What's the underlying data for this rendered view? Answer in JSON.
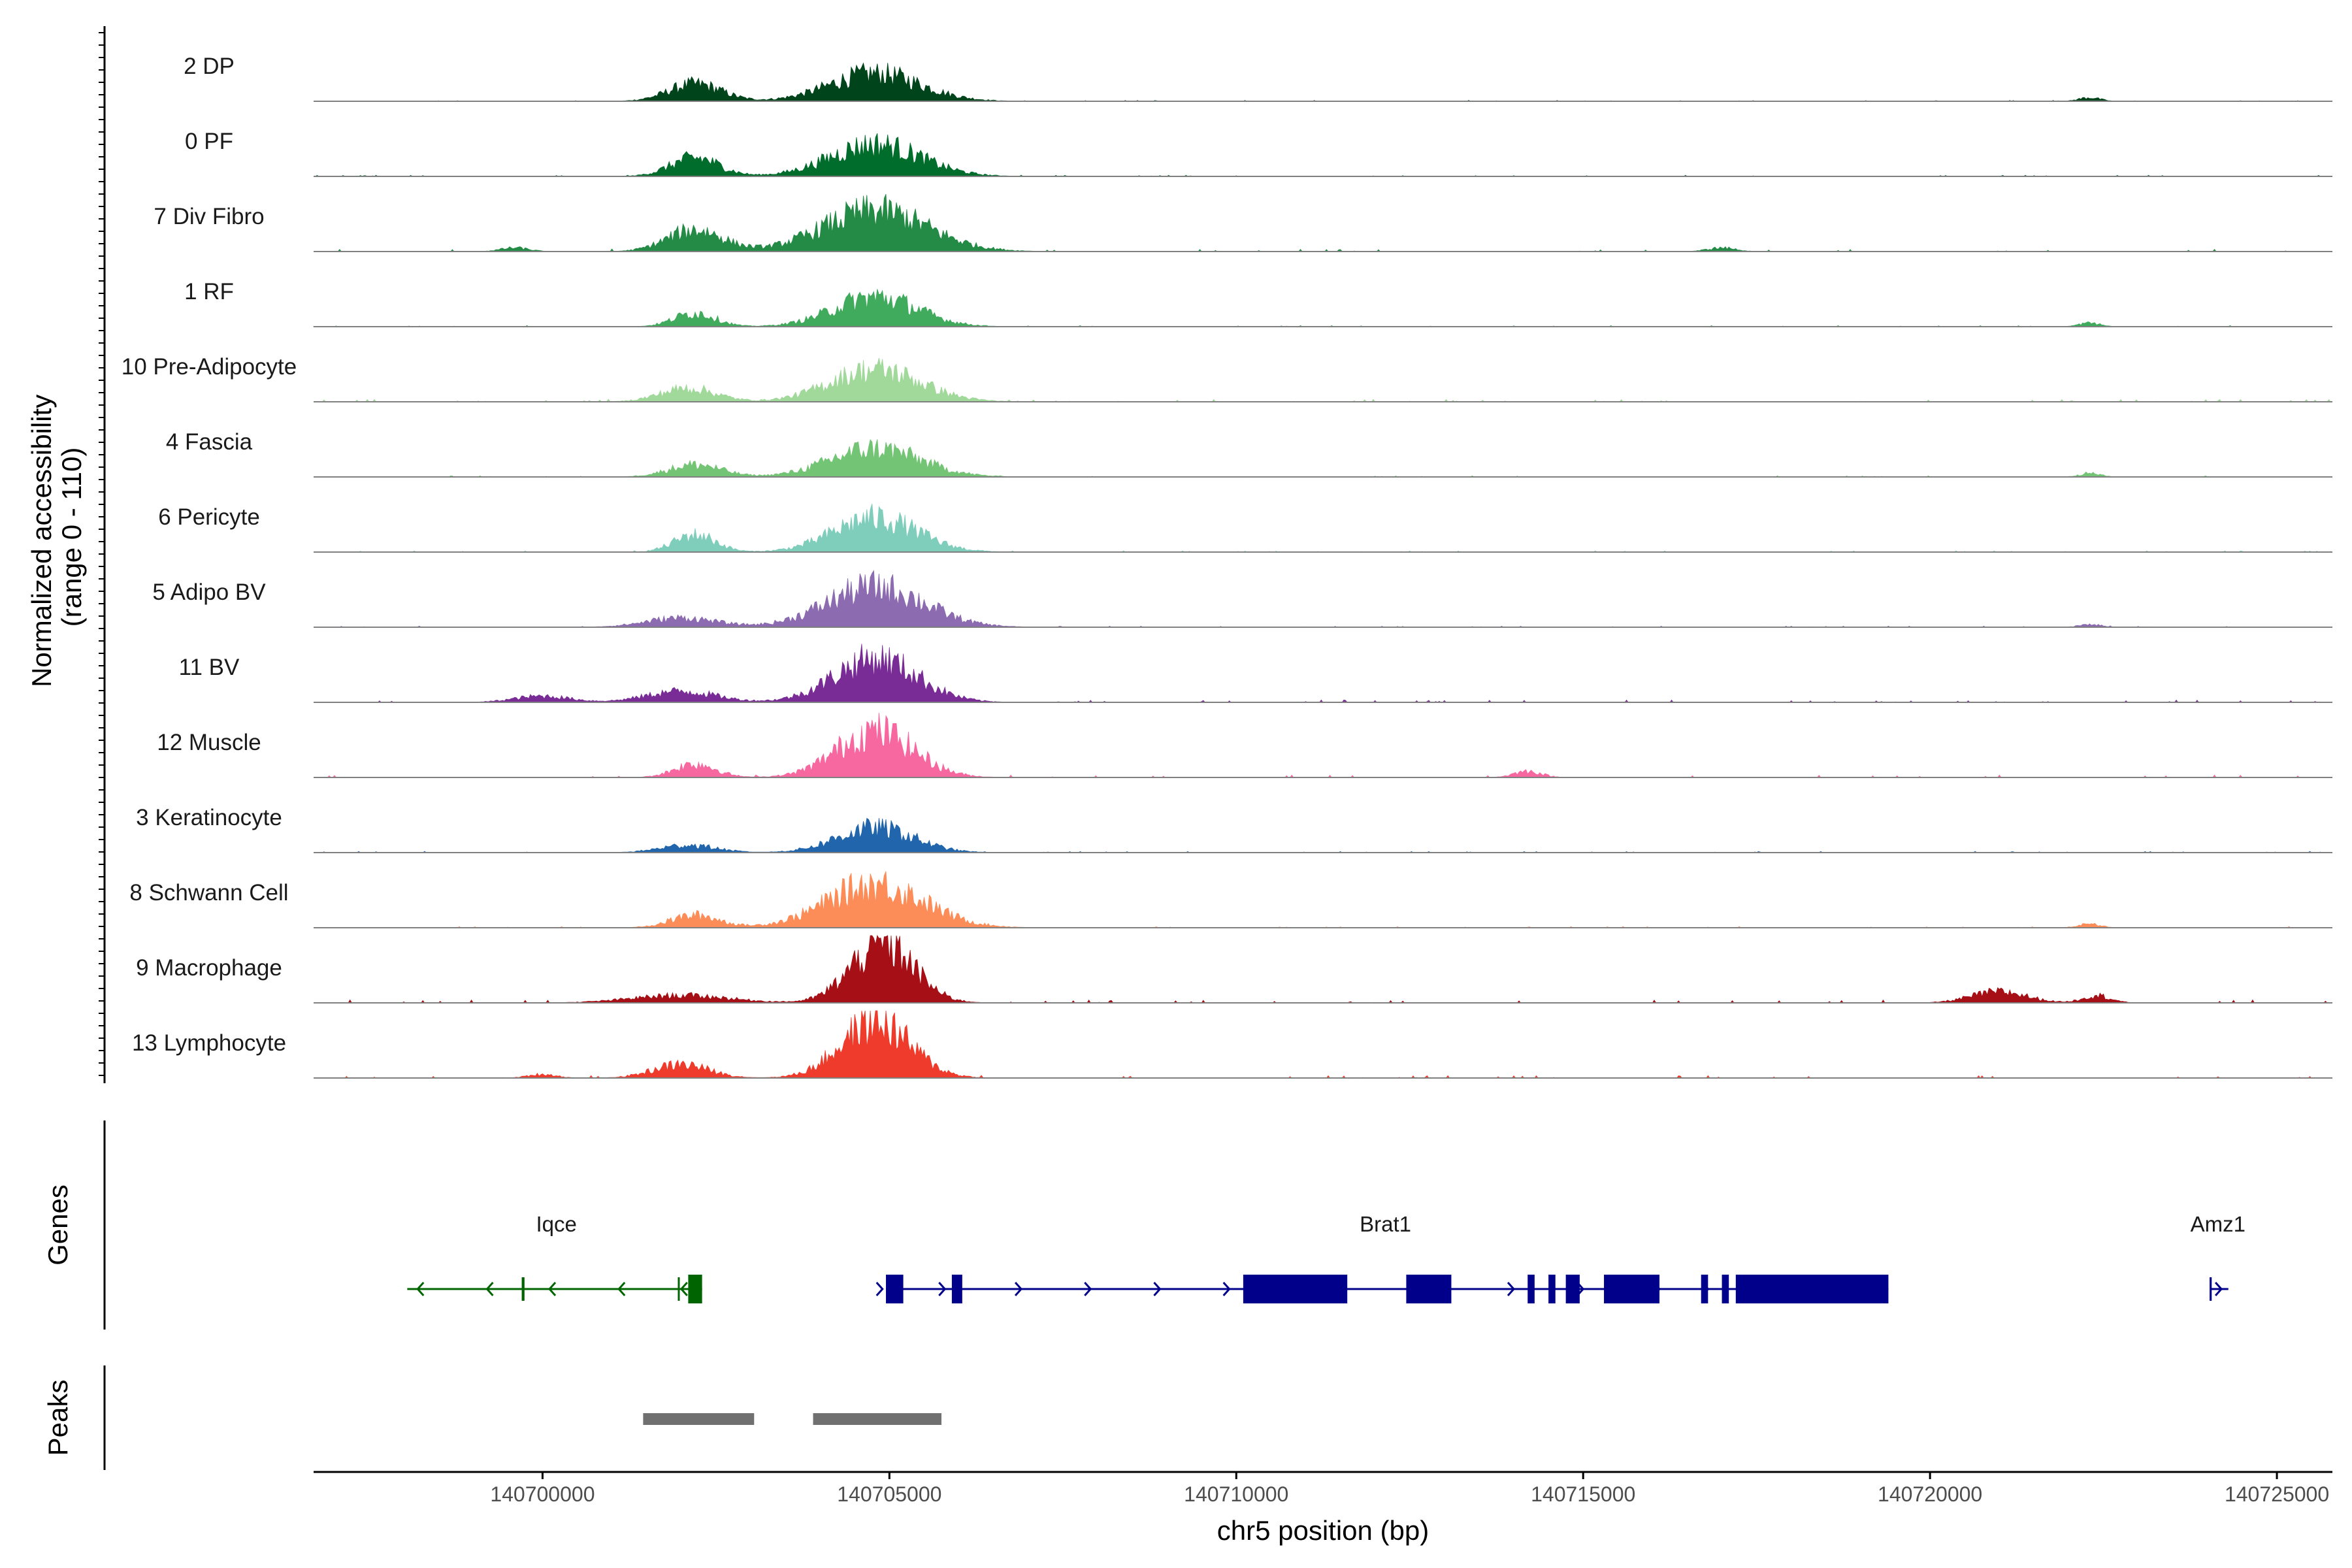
{
  "chart_data": {
    "type": "area",
    "title": "",
    "ylabel_line1": "Normalized accessibility",
    "ylabel_line2": "(range 0 - 110)",
    "ylim": [
      0,
      110
    ],
    "xlabel": "chr5 position (bp)",
    "xlim": [
      140696700,
      140725800
    ],
    "x_ticks": [
      140700000,
      140705000,
      140710000,
      140715000,
      140720000,
      140725000
    ],
    "x_tick_labels": [
      "140700000",
      "140705000",
      "140710000",
      "140715000",
      "140720000",
      "140725000"
    ],
    "panel_labels": {
      "genes": "Genes",
      "peaks": "Peaks"
    },
    "tracks": [
      {
        "name": "2 DP",
        "color": "#00441b",
        "peaks": [
          [
            140702200,
            28,
            380
          ],
          [
            140704800,
            45,
            650
          ],
          [
            140722300,
            6,
            150
          ]
        ],
        "noise": 1.5
      },
      {
        "name": "0 PF",
        "color": "#006d2c",
        "peaks": [
          [
            140702200,
            30,
            350
          ],
          [
            140704800,
            52,
            650
          ]
        ],
        "noise": 2
      },
      {
        "name": "7 Div Fibro",
        "color": "#238b45",
        "peaks": [
          [
            140702200,
            35,
            400
          ],
          [
            140704800,
            66,
            750
          ],
          [
            140699600,
            6,
            200
          ],
          [
            140717000,
            6,
            200
          ]
        ],
        "noise": 4
      },
      {
        "name": "1 RF",
        "color": "#41ab5d",
        "peaks": [
          [
            140702200,
            22,
            300
          ],
          [
            140704800,
            48,
            600
          ],
          [
            140722300,
            6,
            150
          ]
        ],
        "noise": 2
      },
      {
        "name": "10 Pre-Adipocyte",
        "color": "#a1d99b",
        "peaks": [
          [
            140702100,
            22,
            400
          ],
          [
            140704800,
            52,
            650
          ]
        ],
        "noise": 4
      },
      {
        "name": "4 Fascia",
        "color": "#74c476",
        "peaks": [
          [
            140702200,
            20,
            380
          ],
          [
            140704800,
            46,
            650
          ],
          [
            140722300,
            6,
            150
          ]
        ],
        "noise": 2
      },
      {
        "name": "6 Pericyte",
        "color": "#7fcdbb",
        "peaks": [
          [
            140702200,
            28,
            300
          ],
          [
            140704800,
            55,
            600
          ]
        ],
        "noise": 2
      },
      {
        "name": "5 Adipo BV",
        "color": "#8c6bb1",
        "peaks": [
          [
            140702000,
            15,
            500
          ],
          [
            140704800,
            65,
            700
          ],
          [
            140722300,
            5,
            150
          ]
        ],
        "noise": 2
      },
      {
        "name": "11 BV",
        "color": "#7a2c96",
        "peaks": [
          [
            140702000,
            18,
            500
          ],
          [
            140704800,
            70,
            600
          ],
          [
            140700000,
            10,
            400
          ]
        ],
        "noise": 4
      },
      {
        "name": "12 Muscle",
        "color": "#f768a1",
        "peaks": [
          [
            140702200,
            22,
            300
          ],
          [
            140704800,
            75,
            550
          ],
          [
            140714200,
            10,
            200
          ]
        ],
        "noise": 4
      },
      {
        "name": "3 Keratinocyte",
        "color": "#2166ac",
        "peaks": [
          [
            140702100,
            12,
            400
          ],
          [
            140704800,
            40,
            550
          ]
        ],
        "noise": 2
      },
      {
        "name": "8 Schwann Cell",
        "color": "#fc8d59",
        "peaks": [
          [
            140702200,
            20,
            350
          ],
          [
            140704800,
            70,
            700
          ],
          [
            140722300,
            6,
            150
          ]
        ],
        "noise": 2
      },
      {
        "name": "9 Macrophage",
        "color": "#a50f15",
        "peaks": [
          [
            140702000,
            12,
            700
          ],
          [
            140704900,
            95,
            450
          ],
          [
            140721000,
            18,
            400
          ],
          [
            140722400,
            12,
            200
          ]
        ],
        "noise": 5
      },
      {
        "name": "13 Lymphocyte",
        "color": "#ef3b2c",
        "peaks": [
          [
            140702000,
            22,
            400
          ],
          [
            140704800,
            90,
            500
          ],
          [
            140700000,
            6,
            200
          ]
        ],
        "noise": 4
      }
    ],
    "genes": [
      {
        "name": "Iqce",
        "color": "#006400",
        "strand": "-",
        "start": 140698050,
        "end": 140702300,
        "label_x": 140700200,
        "exons": [
          [
            140699700,
            140699740
          ],
          [
            140701950,
            140701970
          ],
          [
            140702100,
            140702300
          ]
        ],
        "arrows": [
          140698200,
          140699200,
          140700100,
          140701100,
          140702000
        ]
      },
      {
        "name": "Brat1",
        "color": "#00008b",
        "strand": "+",
        "start": 140704950,
        "end": 140719400,
        "label_x": 140712150,
        "exons": [
          [
            140704950,
            140705200
          ],
          [
            140705900,
            140706050
          ],
          [
            140710100,
            140711600
          ],
          [
            140712450,
            140713100
          ],
          [
            140714200,
            140714300
          ],
          [
            140714500,
            140714600
          ],
          [
            140714750,
            140714950
          ],
          [
            140715300,
            140716100
          ],
          [
            140716700,
            140716800
          ],
          [
            140717000,
            140717100
          ],
          [
            140717200,
            140719400
          ]
        ],
        "arrows": [
          140704900,
          140705800,
          140706900,
          140707900,
          140708900,
          140709900,
          140714000,
          140715000,
          140716100,
          140716800
        ]
      },
      {
        "name": "Amz1",
        "color": "#00008b",
        "strand": "+",
        "start": 140724050,
        "end": 140724300,
        "label_x": 140724150,
        "exons": [
          [
            140724030,
            140724060
          ]
        ],
        "arrows": [
          140724200
        ]
      }
    ],
    "peaks": [
      [
        140701450,
        140703050
      ],
      [
        140703900,
        140705750
      ]
    ],
    "peak_color": "#707070"
  }
}
